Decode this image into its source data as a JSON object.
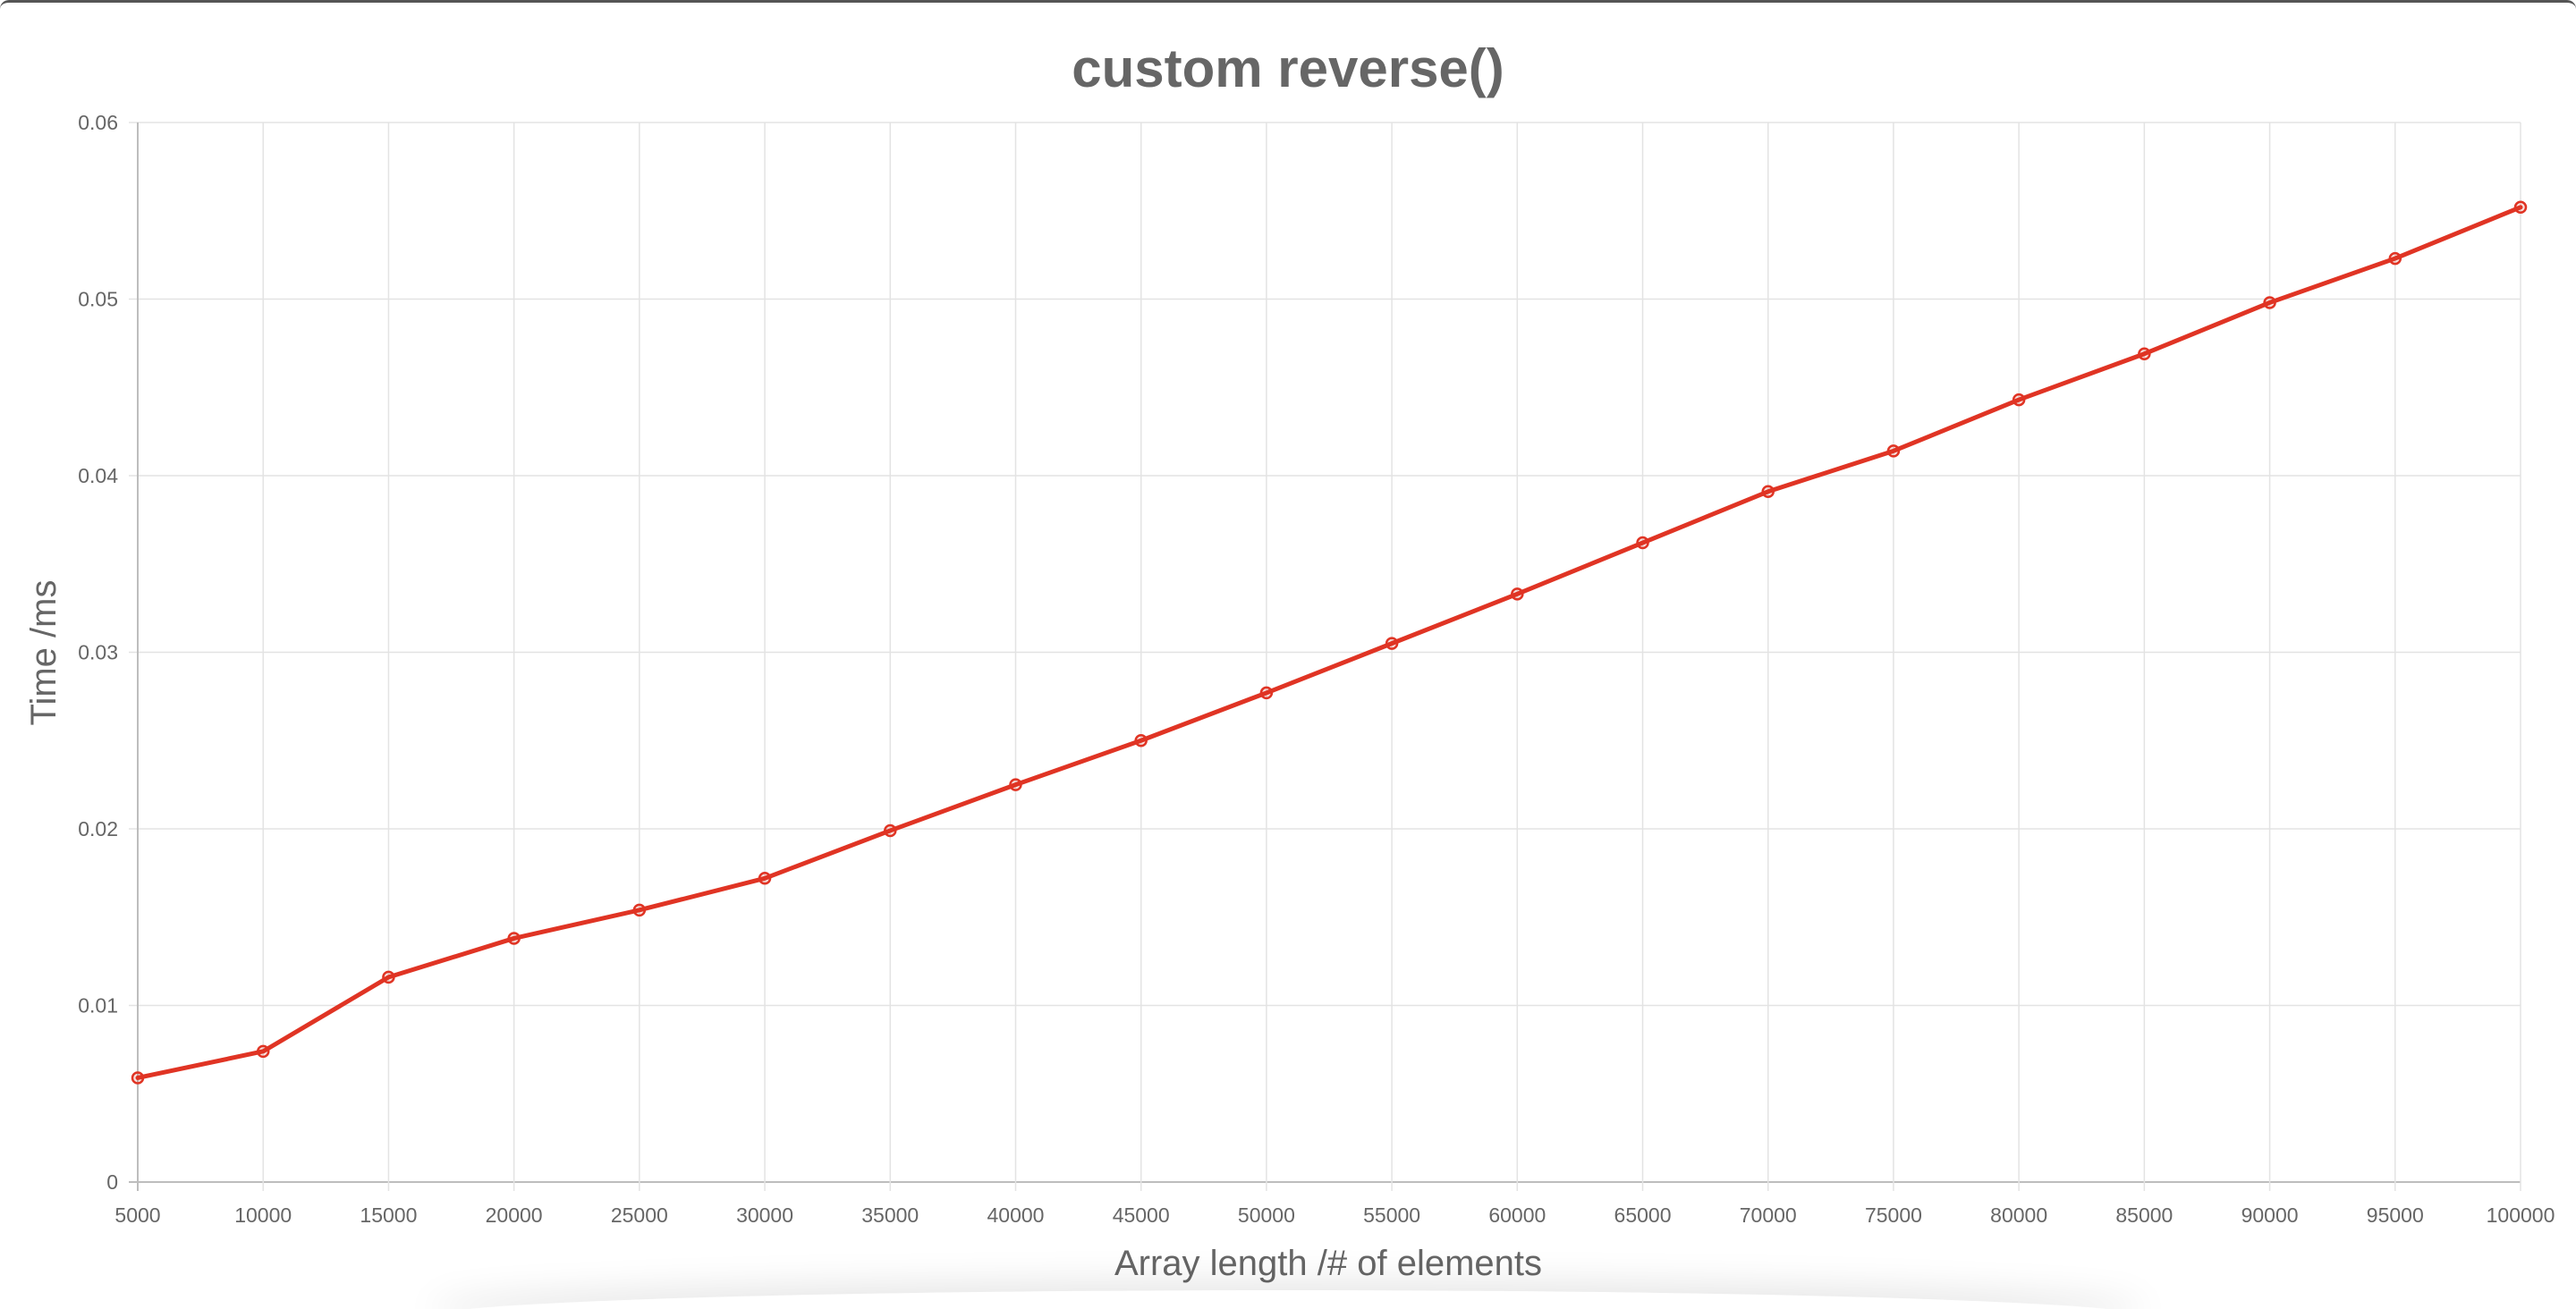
{
  "chart_data": {
    "type": "line",
    "title": "custom reverse()",
    "xlabel": "Array length /# of elements",
    "ylabel": "Time /ms",
    "categories": [
      "5000",
      "10000",
      "15000",
      "20000",
      "25000",
      "30000",
      "35000",
      "40000",
      "45000",
      "50000",
      "55000",
      "60000",
      "65000",
      "70000",
      "75000",
      "80000",
      "85000",
      "90000",
      "95000",
      "100000"
    ],
    "series": [
      {
        "values": [
          0.0059,
          0.0074,
          0.0116,
          0.0138,
          0.0154,
          0.0172,
          0.0199,
          0.0225,
          0.025,
          0.0277,
          0.0305,
          0.0333,
          0.0362,
          0.0391,
          0.0414,
          0.0443,
          0.0469,
          0.0498,
          0.0523,
          0.0552
        ],
        "color": "#e03424"
      }
    ],
    "yticks": [
      "0",
      "0.01",
      "0.02",
      "0.03",
      "0.04",
      "0.05",
      "0.06"
    ],
    "ylim": [
      0,
      0.06
    ],
    "grid": true,
    "legend": "none"
  }
}
